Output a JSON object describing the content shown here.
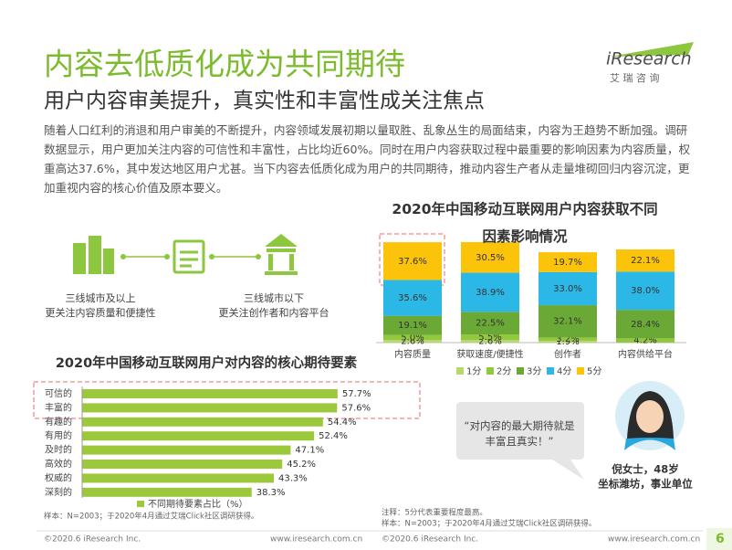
{
  "header": {
    "title": "内容去低质化成为共同期待",
    "subtitle": "用户内容审美提升，真实性和丰富性成关注焦点"
  },
  "logo": {
    "name": "iResearch",
    "tagline": "艾 瑞 咨 询"
  },
  "intro": "随着人口红利的消退和用户审美的不断提升，内容领域发展初期以量取胜、乱象丛生的局面结束，内容为王趋势不断加强。调研数据显示，用户更加关注内容的可信性和丰富性，占比均近60%。同时在用户内容获取过程中最重要的影响因素为内容质量，权重高达37.6%，其中发达地区用户尤甚。当下内容去低质化成为用户的共同期待，推动内容生产者从走量堆砌回归内容沉淀，更加重视内容的核心价值及原本要义。",
  "flow": {
    "left": [
      "三线城市及以上",
      "更关注内容质量和便捷性"
    ],
    "right": [
      "三线城市以下",
      "更关注创作者和内容平台"
    ]
  },
  "chart_data": [
    {
      "type": "stacked_bar",
      "title": "2020年中国移动互联网用户内容获取不同因素影响情况",
      "categories": [
        "内容质量",
        "获取速度/便捷性",
        "创作者",
        "内容供给平台"
      ],
      "series": [
        {
          "name": "1分",
          "color": "#b6d86c",
          "values": [
            2.6,
            2.6,
            1.9,
            null
          ],
          "value_labels": [
            "2.6%",
            "2.6%",
            "1.9%",
            null
          ]
        },
        {
          "name": "2分",
          "color": "#92c83e",
          "values": [
            5.0,
            5.5,
            3.2,
            4.2
          ],
          "value_labels": [
            "5.0%",
            "5.5%",
            "3.2%",
            "4.2%"
          ]
        },
        {
          "name": "3分",
          "color": "#6aa936",
          "values": [
            19.1,
            22.5,
            32.1,
            28.4
          ],
          "value_labels": [
            "19.1%",
            "22.5%",
            "32.1%",
            "28.4%"
          ]
        },
        {
          "name": "4分",
          "color": "#2cb8e6",
          "values": [
            35.6,
            38.9,
            33.0,
            38.0
          ],
          "value_labels": [
            "35.6%",
            "38.9%",
            "33.0%",
            "38.0%"
          ]
        },
        {
          "name": "5分",
          "color": "#fcc30b",
          "values": [
            37.6,
            30.5,
            19.7,
            22.1
          ],
          "value_labels": [
            "37.6%",
            "30.5%",
            "19.7%",
            "22.1%"
          ]
        }
      ]
    },
    {
      "type": "hbar",
      "title": "2020年中国移动互联网用户对内容的核心期待要素",
      "categories": [
        "可信的",
        "丰富的",
        "有趣的",
        "有用的",
        "及时的",
        "高效的",
        "权威的",
        "深刻的"
      ],
      "series": [
        {
          "name": "不同期待要素占比（%）",
          "color": "#9cc93b",
          "values": [
            57.7,
            57.6,
            54.4,
            52.4,
            47.1,
            45.2,
            43.3,
            38.3
          ],
          "value_labels": [
            "57.7%",
            "57.6%",
            "54.4%",
            "52.4%",
            "47.1%",
            "45.2%",
            "43.3%",
            "38.3%"
          ]
        }
      ]
    }
  ],
  "quote": "“对内容的最大期待就是丰富且真实！”",
  "person": [
    "倪女士，48岁",
    "坐标潍坊，事业单位"
  ],
  "notes": {
    "left": [
      "样本：N=2003；于2020年4月通过艾瑞Click社区调研获得。"
    ],
    "right": [
      "注释：5分代表重要程度最高。",
      "样本：N=2003；于2020年4月通过艾瑞Click社区调研获得。"
    ]
  },
  "footer": {
    "copyright": "©2020.6 iResearch Inc.",
    "url": "www.iresearch.com.cn",
    "page": "6"
  }
}
